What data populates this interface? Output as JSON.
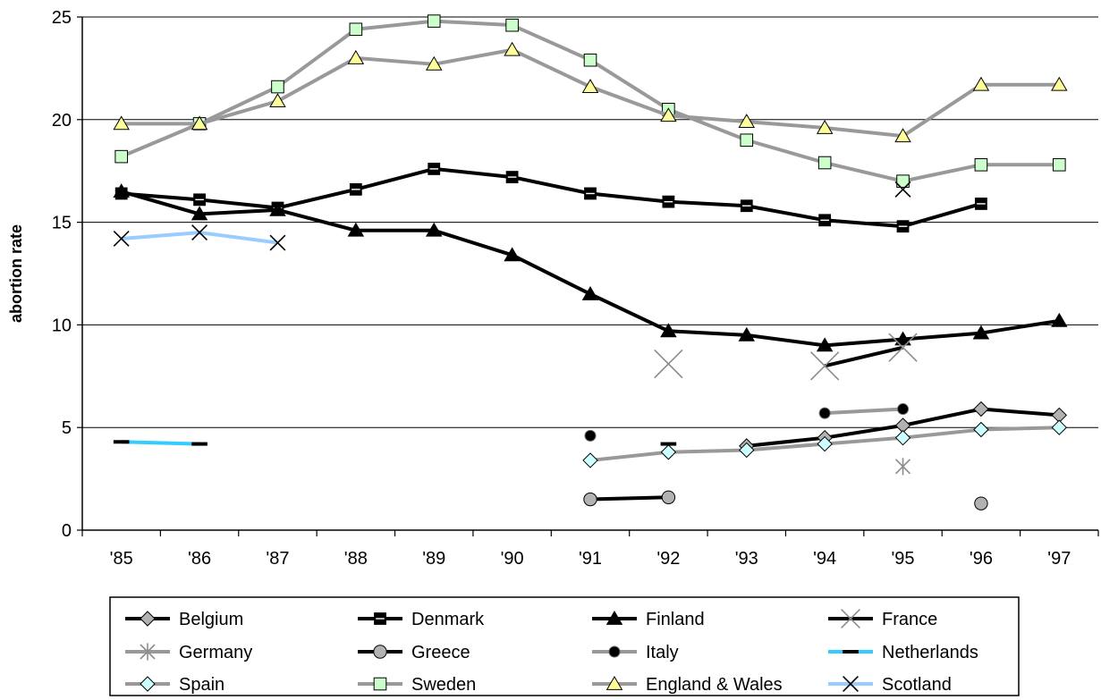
{
  "chart_data": {
    "type": "line",
    "title": "",
    "xlabel": "",
    "ylabel": "abortion rate",
    "x": [
      "'85",
      "'86",
      "'87",
      "'88",
      "'89",
      "'90",
      "'91",
      "'92",
      "'93",
      "'94",
      "'95",
      "'96",
      "'97"
    ],
    "ylim": [
      0,
      25
    ],
    "yticks": [
      0,
      5,
      10,
      15,
      20,
      25
    ],
    "grid": "horizontal",
    "legend_position": "bottom",
    "series": [
      {
        "name": "Belgium",
        "color": "#000000",
        "marker": "diamond",
        "marker_fill": "#b2b2b2",
        "values": [
          null,
          null,
          null,
          null,
          null,
          null,
          null,
          null,
          4.1,
          4.5,
          5.1,
          5.9,
          5.6
        ]
      },
      {
        "name": "Denmark",
        "color": "#000000",
        "marker": "square-line",
        "marker_fill": "#000000",
        "values": [
          16.4,
          16.1,
          15.7,
          16.6,
          17.6,
          17.2,
          16.4,
          16.0,
          15.8,
          15.1,
          14.8,
          15.9,
          null
        ]
      },
      {
        "name": "Finland",
        "color": "#000000",
        "marker": "triangle",
        "marker_fill": "#000000",
        "values": [
          16.5,
          15.4,
          15.6,
          14.6,
          14.6,
          13.4,
          11.5,
          9.7,
          9.5,
          9.0,
          9.3,
          9.6,
          10.2
        ]
      },
      {
        "name": "France",
        "color": "#000000",
        "marker": "star",
        "marker_fill": "#8c8c8c",
        "values": [
          null,
          null,
          null,
          null,
          null,
          null,
          null,
          8.1,
          null,
          8.0,
          8.9,
          null,
          null
        ]
      },
      {
        "name": "Germany",
        "color": "#999999",
        "marker": "asterisk",
        "marker_fill": "#8c8c8c",
        "values": [
          null,
          null,
          null,
          null,
          null,
          null,
          null,
          null,
          null,
          null,
          3.1,
          null,
          null
        ]
      },
      {
        "name": "Greece",
        "color": "#000000",
        "marker": "circle",
        "marker_fill": "#b2b2b2",
        "values": [
          null,
          null,
          null,
          null,
          null,
          null,
          1.5,
          1.6,
          null,
          null,
          null,
          1.3,
          null
        ]
      },
      {
        "name": "Italy",
        "color": "#999999",
        "marker": "dot",
        "marker_fill": "#000000",
        "values": [
          null,
          null,
          null,
          null,
          null,
          null,
          4.6,
          null,
          null,
          5.7,
          5.9,
          null,
          null
        ]
      },
      {
        "name": "Netherlands",
        "color": "#33ccff",
        "marker": "dash",
        "marker_fill": "#000000",
        "values": [
          4.3,
          4.2,
          null,
          null,
          null,
          null,
          null,
          4.2,
          null,
          null,
          null,
          null,
          null
        ]
      },
      {
        "name": "Spain",
        "color": "#999999",
        "marker": "diamond",
        "marker_fill": "#ccffff",
        "values": [
          null,
          null,
          null,
          null,
          null,
          null,
          3.4,
          3.8,
          3.9,
          4.2,
          4.5,
          4.9,
          5.0
        ]
      },
      {
        "name": "Sweden",
        "color": "#999999",
        "marker": "square",
        "marker_fill": "#ccffcc",
        "values": [
          18.2,
          19.8,
          21.6,
          24.4,
          24.8,
          24.6,
          22.9,
          20.5,
          19.0,
          17.9,
          17.0,
          17.8,
          17.8
        ]
      },
      {
        "name": "England & Wales",
        "color": "#999999",
        "marker": "triangle",
        "marker_fill": "#ffff99",
        "values": [
          19.8,
          19.8,
          20.9,
          23.0,
          22.7,
          23.4,
          21.6,
          20.2,
          19.9,
          19.6,
          19.2,
          21.7,
          21.7
        ]
      },
      {
        "name": "Scotland",
        "color": "#99ccff",
        "marker": "x",
        "marker_fill": "#000000",
        "values": [
          14.2,
          14.5,
          14.0,
          null,
          null,
          null,
          null,
          null,
          null,
          null,
          16.6,
          null,
          null
        ]
      }
    ]
  }
}
